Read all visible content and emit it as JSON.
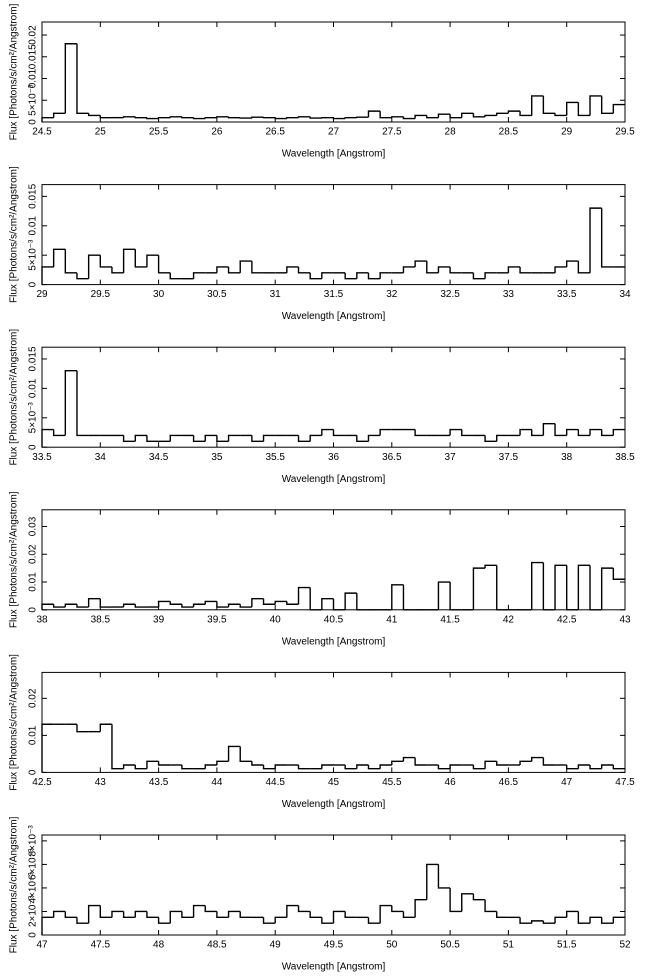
{
  "chart_data": [
    {
      "type": "step",
      "xlabel": "Wavelength [Angstrom]",
      "ylabel": "Flux [Photons/s/cm²/Angstrom]",
      "color": "#000000",
      "xlim": [
        24.5,
        29.5
      ],
      "xticks": [
        24.5,
        25,
        25.5,
        26,
        26.5,
        27,
        27.5,
        28,
        28.5,
        29,
        29.5
      ],
      "ylim": [
        0,
        0.023
      ],
      "yticks": [
        0,
        {
          "value": 0.005,
          "label": "5×10⁻³"
        },
        0.01,
        0.015,
        0.02
      ],
      "x": [
        24.55,
        24.65,
        24.75,
        24.85,
        24.95,
        25.05,
        25.15,
        25.25,
        25.35,
        25.45,
        25.55,
        25.65,
        25.75,
        25.85,
        25.95,
        26.05,
        26.15,
        26.25,
        26.35,
        26.45,
        26.55,
        26.65,
        26.75,
        26.85,
        26.95,
        27.05,
        27.15,
        27.25,
        27.35,
        27.45,
        27.55,
        27.65,
        27.75,
        27.85,
        27.95,
        28.05,
        28.15,
        28.25,
        28.35,
        28.45,
        28.55,
        28.65,
        28.75,
        28.85,
        28.95,
        29.05,
        29.15,
        29.25,
        29.35,
        29.45
      ],
      "values": [
        0.001,
        0.002,
        0.018,
        0.002,
        0.0015,
        0.001,
        0.001,
        0.0012,
        0.001,
        0.0008,
        0.001,
        0.0012,
        0.001,
        0.0008,
        0.001,
        0.0012,
        0.001,
        0.0009,
        0.0011,
        0.001,
        0.0008,
        0.001,
        0.0012,
        0.0009,
        0.001,
        0.0008,
        0.001,
        0.0011,
        0.0025,
        0.001,
        0.0012,
        0.0008,
        0.0015,
        0.001,
        0.0018,
        0.001,
        0.002,
        0.0012,
        0.0015,
        0.002,
        0.0025,
        0.0015,
        0.006,
        0.002,
        0.0015,
        0.0045,
        0.0015,
        0.006,
        0.002,
        0.004
      ]
    },
    {
      "type": "step",
      "xlabel": "Wavelength [Angstrom]",
      "ylabel": "Flux [Photons/s/cm²/Angstrom]",
      "color": "#000000",
      "xlim": [
        29,
        34
      ],
      "xticks": [
        29,
        29.5,
        30,
        30.5,
        31,
        31.5,
        32,
        32.5,
        33,
        33.5,
        34
      ],
      "ylim": [
        0,
        0.017
      ],
      "yticks": [
        0,
        {
          "value": 0.005,
          "label": "5×10⁻³"
        },
        0.01,
        0.015
      ],
      "x": [
        29.05,
        29.15,
        29.25,
        29.35,
        29.45,
        29.55,
        29.65,
        29.75,
        29.85,
        29.95,
        30.05,
        30.15,
        30.25,
        30.35,
        30.45,
        30.55,
        30.65,
        30.75,
        30.85,
        30.95,
        31.05,
        31.15,
        31.25,
        31.35,
        31.45,
        31.55,
        31.65,
        31.75,
        31.85,
        31.95,
        32.05,
        32.15,
        32.25,
        32.35,
        32.45,
        32.55,
        32.65,
        32.75,
        32.85,
        32.95,
        33.05,
        33.15,
        33.25,
        33.35,
        33.45,
        33.55,
        33.65,
        33.75,
        33.85,
        33.95
      ],
      "values": [
        0.003,
        0.006,
        0.002,
        0.001,
        0.005,
        0.003,
        0.002,
        0.006,
        0.003,
        0.005,
        0.002,
        0.001,
        0.001,
        0.002,
        0.002,
        0.003,
        0.002,
        0.004,
        0.002,
        0.002,
        0.002,
        0.003,
        0.002,
        0.001,
        0.002,
        0.002,
        0.001,
        0.002,
        0.001,
        0.002,
        0.002,
        0.003,
        0.004,
        0.002,
        0.003,
        0.002,
        0.002,
        0.001,
        0.002,
        0.002,
        0.003,
        0.002,
        0.002,
        0.002,
        0.003,
        0.004,
        0.002,
        0.013,
        0.003,
        0.003
      ]
    },
    {
      "type": "step",
      "xlabel": "Wavelength [Angstrom]",
      "ylabel": "Flux [Photons/s/cm²/Angstrom]",
      "color": "#000000",
      "xlim": [
        33.5,
        38.5
      ],
      "xticks": [
        33.5,
        34,
        34.5,
        35,
        35.5,
        36,
        36.5,
        37,
        37.5,
        38,
        38.5
      ],
      "ylim": [
        0,
        0.017
      ],
      "yticks": [
        0,
        {
          "value": 0.005,
          "label": "5×10⁻³"
        },
        0.01,
        0.015
      ],
      "x": [
        33.55,
        33.65,
        33.75,
        33.85,
        33.95,
        34.05,
        34.15,
        34.25,
        34.35,
        34.45,
        34.55,
        34.65,
        34.75,
        34.85,
        34.95,
        35.05,
        35.15,
        35.25,
        35.35,
        35.45,
        35.55,
        35.65,
        35.75,
        35.85,
        35.95,
        36.05,
        36.15,
        36.25,
        36.35,
        36.45,
        36.55,
        36.65,
        36.75,
        36.85,
        36.95,
        37.05,
        37.15,
        37.25,
        37.35,
        37.45,
        37.55,
        37.65,
        37.75,
        37.85,
        37.95,
        38.05,
        38.15,
        38.25,
        38.35,
        38.45
      ],
      "values": [
        0.003,
        0.002,
        0.013,
        0.002,
        0.002,
        0.002,
        0.002,
        0.001,
        0.002,
        0.001,
        0.001,
        0.002,
        0.002,
        0.001,
        0.002,
        0.001,
        0.002,
        0.002,
        0.001,
        0.002,
        0.002,
        0.002,
        0.001,
        0.002,
        0.003,
        0.002,
        0.002,
        0.001,
        0.002,
        0.003,
        0.003,
        0.003,
        0.002,
        0.002,
        0.002,
        0.003,
        0.002,
        0.002,
        0.001,
        0.002,
        0.002,
        0.003,
        0.002,
        0.004,
        0.002,
        0.003,
        0.002,
        0.003,
        0.002,
        0.003
      ]
    },
    {
      "type": "step",
      "xlabel": "Wavelength [Angstrom]",
      "ylabel": "Flux [Photons/s/cm²/Angstrom]",
      "color": "#000000",
      "xlim": [
        38,
        43
      ],
      "xticks": [
        38,
        38.5,
        39,
        39.5,
        40,
        40.5,
        41,
        41.5,
        42,
        42.5,
        43
      ],
      "ylim": [
        0,
        0.036
      ],
      "yticks": [
        0,
        0.01,
        0.02,
        0.03
      ],
      "x": [
        38.05,
        38.15,
        38.25,
        38.35,
        38.45,
        38.55,
        38.65,
        38.75,
        38.85,
        38.95,
        39.05,
        39.15,
        39.25,
        39.35,
        39.45,
        39.55,
        39.65,
        39.75,
        39.85,
        39.95,
        40.05,
        40.15,
        40.25,
        40.35,
        40.45,
        40.55,
        40.65,
        40.75,
        40.85,
        40.95,
        41.05,
        41.15,
        41.25,
        41.35,
        41.45,
        41.55,
        41.65,
        41.75,
        41.85,
        41.95,
        42.05,
        42.15,
        42.25,
        42.35,
        42.45,
        42.55,
        42.65,
        42.75,
        42.85,
        42.95
      ],
      "values": [
        0.002,
        0.001,
        0.002,
        0.001,
        0.004,
        0.001,
        0.001,
        0.002,
        0.001,
        0.001,
        0.003,
        0.002,
        0.001,
        0.002,
        0.003,
        0.001,
        0.002,
        0.001,
        0.004,
        0.002,
        0.003,
        0.002,
        0.008,
        0,
        0.004,
        0,
        0.006,
        0,
        0,
        0,
        0.009,
        0,
        0,
        0,
        0.01,
        0,
        0,
        0.015,
        0.016,
        0,
        0,
        0,
        0.017,
        0,
        0.016,
        0,
        0.016,
        0,
        0.015,
        0.011
      ]
    },
    {
      "type": "step",
      "xlabel": "Wavelength [Angstrom]",
      "ylabel": "Flux [Photons/s/cm²/Angstrom]",
      "color": "#000000",
      "xlim": [
        42.5,
        47.5
      ],
      "xticks": [
        42.5,
        43,
        43.5,
        44,
        44.5,
        45,
        45.5,
        46,
        46.5,
        47,
        47.5
      ],
      "ylim": [
        0,
        0.027
      ],
      "yticks": [
        0,
        0.01,
        0.02
      ],
      "x": [
        42.55,
        42.65,
        42.75,
        42.85,
        42.95,
        43.05,
        43.15,
        43.25,
        43.35,
        43.45,
        43.55,
        43.65,
        43.75,
        43.85,
        43.95,
        44.05,
        44.15,
        44.25,
        44.35,
        44.45,
        44.55,
        44.65,
        44.75,
        44.85,
        44.95,
        45.05,
        45.15,
        45.25,
        45.35,
        45.45,
        45.55,
        45.65,
        45.75,
        45.85,
        45.95,
        46.05,
        46.15,
        46.25,
        46.35,
        46.45,
        46.55,
        46.65,
        46.75,
        46.85,
        46.95,
        47.05,
        47.15,
        47.25,
        47.35,
        47.45
      ],
      "values": [
        0.013,
        0.013,
        0.013,
        0.011,
        0.011,
        0.013,
        0.001,
        0.002,
        0.001,
        0.003,
        0.002,
        0.002,
        0.001,
        0.001,
        0.002,
        0.003,
        0.007,
        0.003,
        0.002,
        0.001,
        0.002,
        0.002,
        0.001,
        0.001,
        0.002,
        0.002,
        0.001,
        0.002,
        0.001,
        0.002,
        0.003,
        0.004,
        0.002,
        0.002,
        0.001,
        0.002,
        0.002,
        0.001,
        0.003,
        0.002,
        0.002,
        0.003,
        0.004,
        0.002,
        0.002,
        0.001,
        0.002,
        0.001,
        0.002,
        0.001
      ]
    },
    {
      "type": "step",
      "xlabel": "Wavelength [Angstrom]",
      "ylabel": "Flux [Photons/s/cm²/Angstrom]",
      "color": "#000000",
      "xlim": [
        47,
        52
      ],
      "xticks": [
        47,
        47.5,
        48,
        48.5,
        49,
        49.5,
        50,
        50.5,
        51,
        51.5,
        52
      ],
      "ylim": [
        0,
        0.0085
      ],
      "yticks": [
        0,
        {
          "value": 0.002,
          "label": "2×10⁻³"
        },
        {
          "value": 0.004,
          "label": "4×10⁻³"
        },
        {
          "value": 0.006,
          "label": "6×10⁻³"
        },
        {
          "value": 0.008,
          "label": "8×10⁻³"
        }
      ],
      "x": [
        47.05,
        47.15,
        47.25,
        47.35,
        47.45,
        47.55,
        47.65,
        47.75,
        47.85,
        47.95,
        48.05,
        48.15,
        48.25,
        48.35,
        48.45,
        48.55,
        48.65,
        48.75,
        48.85,
        48.95,
        49.05,
        49.15,
        49.25,
        49.35,
        49.45,
        49.55,
        49.65,
        49.75,
        49.85,
        49.95,
        50.05,
        50.15,
        50.25,
        50.35,
        50.45,
        50.55,
        50.65,
        50.75,
        50.85,
        50.95,
        51.05,
        51.15,
        51.25,
        51.35,
        51.45,
        51.55,
        51.65,
        51.75,
        51.85,
        51.95
      ],
      "values": [
        0.0015,
        0.002,
        0.0015,
        0.001,
        0.0025,
        0.0015,
        0.002,
        0.0015,
        0.002,
        0.0015,
        0.001,
        0.002,
        0.0015,
        0.0025,
        0.002,
        0.0015,
        0.002,
        0.0015,
        0.0015,
        0.001,
        0.0015,
        0.0025,
        0.002,
        0.0015,
        0.001,
        0.002,
        0.0015,
        0.0015,
        0.001,
        0.0025,
        0.002,
        0.0015,
        0.003,
        0.006,
        0.004,
        0.002,
        0.0035,
        0.003,
        0.002,
        0.0015,
        0.0015,
        0.001,
        0.0012,
        0.001,
        0.0015,
        0.002,
        0.001,
        0.0015,
        0.001,
        0.0015
      ]
    }
  ]
}
